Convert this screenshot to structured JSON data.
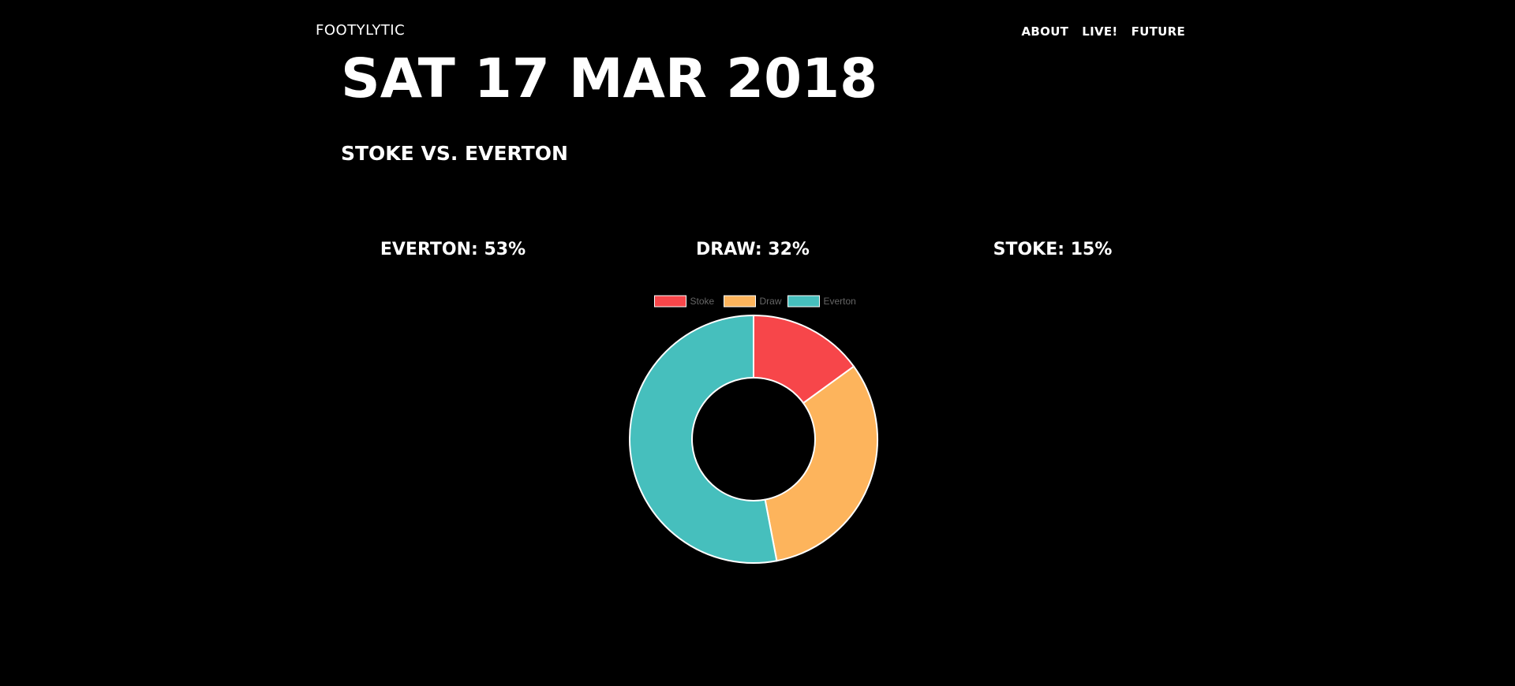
{
  "header": {
    "brand": "FOOTYLYTIC",
    "nav": [
      {
        "label": "ABOUT"
      },
      {
        "label": "LIVE!"
      },
      {
        "label": "FUTURE"
      }
    ]
  },
  "match": {
    "date": "SAT 17 MAR 2018",
    "title": "STOKE VS. EVERTON"
  },
  "predictions": {
    "everton": "EVERTON: 53%",
    "draw": "DRAW: 32%",
    "stoke": "STOKE: 15%"
  },
  "chart_data": {
    "type": "pie",
    "categories": [
      "Stoke",
      "Draw",
      "Everton"
    ],
    "values": [
      15,
      32,
      53
    ],
    "colors": [
      "#F7464A",
      "#FDB45C",
      "#46BFBD"
    ],
    "legend": "top",
    "donut": true
  }
}
